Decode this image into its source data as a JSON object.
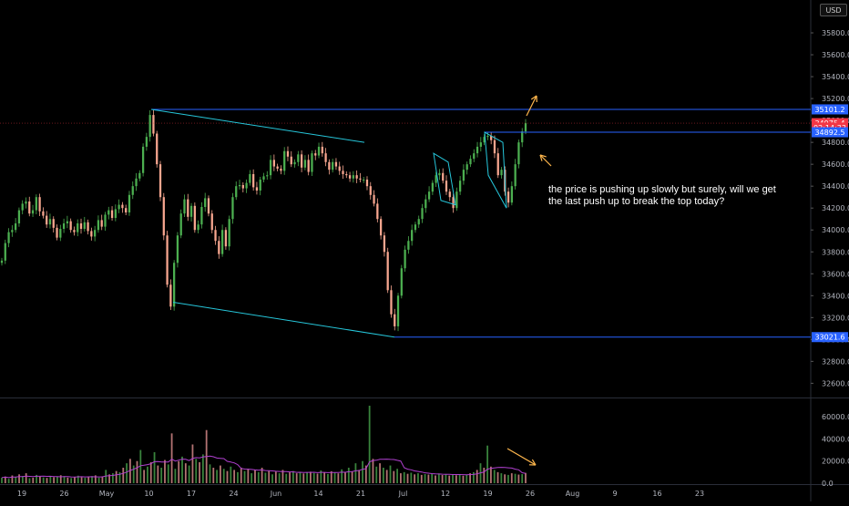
{
  "chart_data": {
    "type": "candlestick",
    "symbol_currency": "USD",
    "price_ticks": [
      "35800.0",
      "35600.0",
      "35400.0",
      "35200.0",
      "35000.0",
      "34800.0",
      "34600.0",
      "34400.0",
      "34200.0",
      "34000.0",
      "33800.0",
      "33600.0",
      "33400.0",
      "33200.0",
      "33000.0",
      "32800.0",
      "32600.0"
    ],
    "price_tick_values": [
      35800,
      35600,
      35400,
      35200,
      35000,
      34800,
      34600,
      34400,
      34200,
      34000,
      33800,
      33600,
      33400,
      33200,
      33000,
      32800,
      32600
    ],
    "volume_ticks": [
      "60000.0",
      "40000.0",
      "20000.0",
      "0.0"
    ],
    "volume_tick_values": [
      60000,
      40000,
      20000,
      0
    ],
    "x_ticks": [
      "19",
      "26",
      "May",
      "10",
      "17",
      "24",
      "Jun",
      "14",
      "21",
      "Jul",
      "12",
      "19",
      "26",
      "Aug",
      "9",
      "16",
      "23"
    ],
    "price_labels": [
      {
        "text": "35101.2",
        "value": 35101.2,
        "color": "#2962ff"
      },
      {
        "text": "34975.4",
        "value": 34975.4,
        "color": "#f23645"
      },
      {
        "text": "02:14:33",
        "value": 34935,
        "color": "#f23645"
      },
      {
        "text": "34892.5",
        "value": 34892.5,
        "color": "#2962ff"
      },
      {
        "text": "33021.6",
        "value": 33021.6,
        "color": "#2962ff"
      }
    ],
    "horizontal_levels": [
      35101.2,
      34892.5,
      33021.6
    ],
    "current_price": 34975.4,
    "candle_series": [
      33720,
      33880,
      33980,
      34000,
      34060,
      34180,
      34240,
      34260,
      34150,
      34180,
      34300,
      34170,
      34130,
      34050,
      34100,
      34020,
      33930,
      34010,
      34060,
      34080,
      34000,
      33980,
      34060,
      34010,
      34070,
      33990,
      33940,
      34000,
      34090,
      34030,
      34140,
      34180,
      34110,
      34190,
      34230,
      34200,
      34160,
      34320,
      34400,
      34470,
      34520,
      34760,
      34850,
      35050,
      34880,
      34600,
      34300,
      33950,
      33500,
      33300,
      33700,
      33950,
      34150,
      34280,
      34120,
      34220,
      34000,
      34050,
      34210,
      34290,
      34150,
      34000,
      33900,
      33780,
      34000,
      33850,
      34100,
      34300,
      34400,
      34410,
      34380,
      34430,
      34510,
      34390,
      34360,
      34460,
      34490,
      34500,
      34640,
      34580,
      34560,
      34540,
      34720,
      34670,
      34600,
      34620,
      34690,
      34570,
      34640,
      34530,
      34700,
      34680,
      34760,
      34700,
      34620,
      34550,
      34620,
      34580,
      34540,
      34510,
      34500,
      34470,
      34500,
      34470,
      34460,
      34460,
      34400,
      34320,
      34240,
      34100,
      33950,
      33800,
      33450,
      33230,
      33120,
      33400,
      33650,
      33820,
      33900,
      34000,
      34050,
      34100,
      34200,
      34280,
      34350,
      34430,
      34500,
      34520,
      34450,
      34350,
      34300,
      34200,
      34350,
      34450,
      34550,
      34600,
      34650,
      34700,
      34760,
      34800,
      34850,
      34860,
      34820,
      34700,
      34500,
      34550,
      34350,
      34250,
      34400,
      34600,
      34800,
      34900,
      34975
    ],
    "volume_series": [
      5000,
      6000,
      4000,
      7000,
      5500,
      8000,
      6500,
      9000,
      4500,
      5000,
      7500,
      6000,
      5200,
      4800,
      6100,
      5400,
      5900,
      7200,
      6300,
      5100,
      4700,
      5600,
      6800,
      5300,
      4900,
      5800,
      6400,
      7100,
      5000,
      6200,
      12000,
      8000,
      9000,
      11000,
      10000,
      14000,
      18000,
      22000,
      16000,
      20000,
      30000,
      12000,
      15000,
      19000,
      28000,
      16000,
      14000,
      21000,
      17000,
      45000,
      13000,
      20000,
      24000,
      18000,
      16000,
      35000,
      22000,
      19000,
      26000,
      48000,
      17000,
      14000,
      12000,
      16000,
      13000,
      11000,
      15000,
      12000,
      10000,
      14000,
      11000,
      13000,
      9000,
      12000,
      10000,
      14000,
      9500,
      11000,
      8000,
      10500,
      9000,
      12000,
      8500,
      9800,
      11000,
      9000,
      10200,
      8800,
      9600,
      10400,
      9200,
      8700,
      11500,
      9900,
      8300,
      10800,
      9400,
      8900,
      12500,
      9700,
      14000,
      10500,
      18000,
      12000,
      20000,
      16000,
      70000,
      22000,
      15000,
      18000,
      14000,
      12000,
      16000,
      11000,
      13000,
      9000,
      10000,
      8500,
      9500,
      8000,
      9000,
      7500,
      8200,
      7800,
      8600,
      7000,
      8800,
      7400,
      8300,
      6900,
      7900,
      7200,
      8100,
      6800,
      7600,
      9000,
      10000,
      12000,
      18000,
      14000,
      34000,
      15000,
      12000,
      10000,
      9000,
      8000,
      7500,
      9000,
      8500,
      7800,
      8200,
      9300
    ],
    "volume_ylim": [
      0,
      70000
    ],
    "ylim": [
      32470,
      36100
    ]
  },
  "annotation": {
    "line1": "the price is pushing up slowly but surely, will we get",
    "line2": "the last push up to break the top today?"
  },
  "currency_label": "USD",
  "colors": {
    "up": "#26a69a",
    "down": "#ef5350",
    "bull_highlight": "#4caf50",
    "bear_highlight": "#f7a68f",
    "trendline": "#26c6da",
    "level_line": "#2962ff",
    "arrow": "#ffb74d",
    "volume_ma": "#b040d0"
  }
}
